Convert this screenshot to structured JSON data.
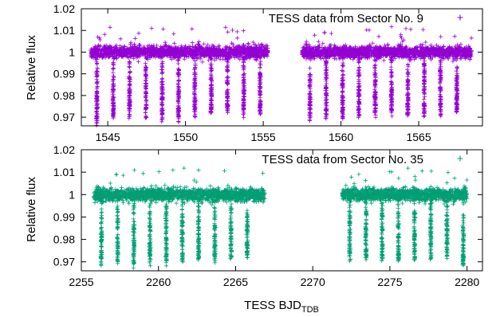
{
  "chart_data": [
    {
      "type": "scatter",
      "ylabel": "Relative flux",
      "xlim": [
        1543.3,
        1569.1
      ],
      "ylim": [
        0.966,
        1.02
      ],
      "xticks": [
        1545,
        1550,
        1555,
        1560,
        1565
      ],
      "xtick_labels": [
        "1545",
        "1550",
        "1555",
        "1560",
        "1565"
      ],
      "yticks": [
        0.97,
        0.98,
        0.99,
        1.0,
        1.01,
        1.02
      ],
      "ytick_labels": [
        "0.97",
        "0.98",
        "0.99",
        "1",
        "1.01",
        "1.02"
      ],
      "legend_position": "top-right",
      "grid": false,
      "series": [
        {
          "name": "TESS data from Sector No. 9",
          "color": "#9400d3",
          "marker": "+",
          "segments": [
            [
              1543.9,
              1555.3
            ],
            [
              1557.5,
              1568.4
            ]
          ],
          "baseline_flux": 1.0,
          "baseline_scatter": 0.0025,
          "eclipse_times": [
            1544.3,
            1545.35,
            1546.4,
            1547.45,
            1548.5,
            1549.55,
            1550.6,
            1551.65,
            1552.7,
            1553.75,
            1554.8,
            1558.0,
            1559.05,
            1560.1,
            1561.15,
            1562.2,
            1563.25,
            1564.3,
            1565.35,
            1566.4,
            1567.45
          ],
          "eclipse_min_flux": [
            0.967,
            0.97,
            0.97,
            0.97,
            0.97,
            0.97,
            0.971,
            0.971,
            0.972,
            0.972,
            0.972,
            0.97,
            0.97,
            0.97,
            0.971,
            0.971,
            0.971,
            0.971,
            0.972,
            0.972,
            0.973
          ]
        }
      ]
    },
    {
      "type": "scatter",
      "xlabel": "TESS BJD",
      "xlabel_subscript": "TDB",
      "ylabel": "Relative flux",
      "xlim": [
        2255.0,
        2281.0
      ],
      "ylim": [
        0.966,
        1.02
      ],
      "xticks": [
        2255,
        2260,
        2265,
        2270,
        2275,
        2280
      ],
      "xtick_labels": [
        "2255",
        "2260",
        "2265",
        "2270",
        "2275",
        "2280"
      ],
      "yticks": [
        0.97,
        0.98,
        0.99,
        1.0,
        1.01,
        1.02
      ],
      "ytick_labels": [
        "0.97",
        "0.98",
        "0.99",
        "1",
        "1.01",
        "1.02"
      ],
      "legend_position": "top-right",
      "grid": false,
      "series": [
        {
          "name": "TESS data from Sector No. 35",
          "color": "#009e73",
          "marker": "+",
          "segments": [
            [
              2255.8,
              2266.9
            ],
            [
              2271.9,
              2280.0
            ]
          ],
          "baseline_flux": 1.0,
          "baseline_scatter": 0.0025,
          "eclipse_times": [
            2256.3,
            2257.35,
            2258.4,
            2259.45,
            2260.5,
            2261.55,
            2262.6,
            2263.65,
            2264.7,
            2265.75,
            2272.4,
            2273.45,
            2274.5,
            2275.55,
            2276.6,
            2277.65,
            2278.7,
            2279.75
          ],
          "eclipse_min_flux": [
            0.97,
            0.97,
            0.97,
            0.97,
            0.97,
            0.971,
            0.971,
            0.971,
            0.972,
            0.972,
            0.971,
            0.971,
            0.971,
            0.971,
            0.971,
            0.972,
            0.972,
            0.969
          ]
        }
      ]
    }
  ]
}
